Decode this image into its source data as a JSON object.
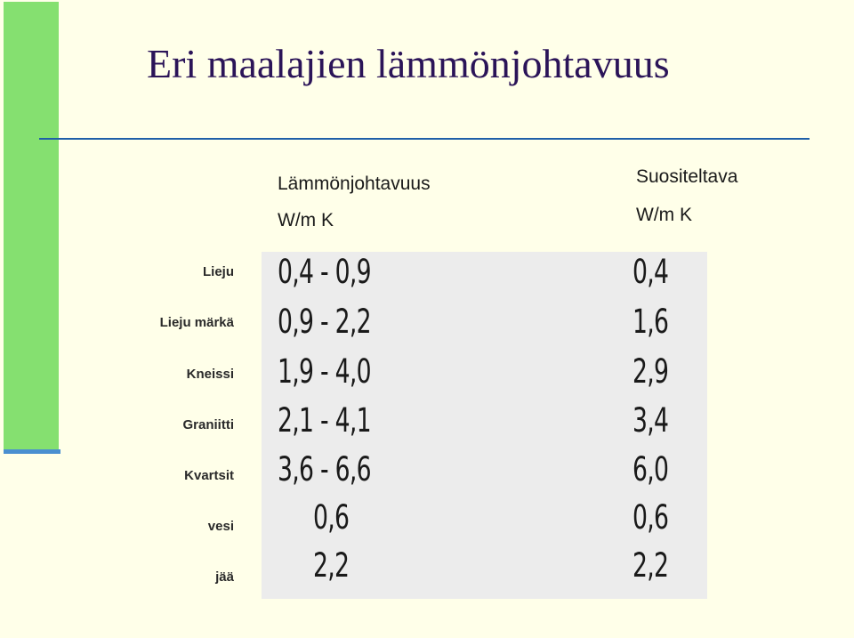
{
  "title": "Eri maalajien lämmönjohtavuus",
  "columns": {
    "conductivity": {
      "label": "Lämmönjohtavuus",
      "unit": "W/m K"
    },
    "recommended": {
      "label": "Suositeltava",
      "unit": "W/m K"
    }
  },
  "rows": [
    {
      "material": "Lieju",
      "conductivity": "0,4 - 0,9",
      "recommended": "0,4"
    },
    {
      "material": "Lieju märkä",
      "conductivity": "0,9 - 2,2",
      "recommended": "1,6"
    },
    {
      "material": "Kneissi",
      "conductivity": "1,9 - 4,0",
      "recommended": "2,9"
    },
    {
      "material": "Graniitti",
      "conductivity": "2,1 - 4,1",
      "recommended": "3,4"
    },
    {
      "material": "Kvartsit",
      "conductivity": "3,6 - 6,6",
      "recommended": "6,0"
    },
    {
      "material": "vesi",
      "conductivity": "0,6",
      "recommended": "0,6"
    },
    {
      "material": "jää",
      "conductivity": "2,2",
      "recommended": "2,2"
    }
  ],
  "colors": {
    "background": "#ffffe9",
    "accent_bar": "#85e070",
    "rule": "#1f5fa8",
    "title": "#2b1458",
    "table_fill": "#ececec"
  }
}
